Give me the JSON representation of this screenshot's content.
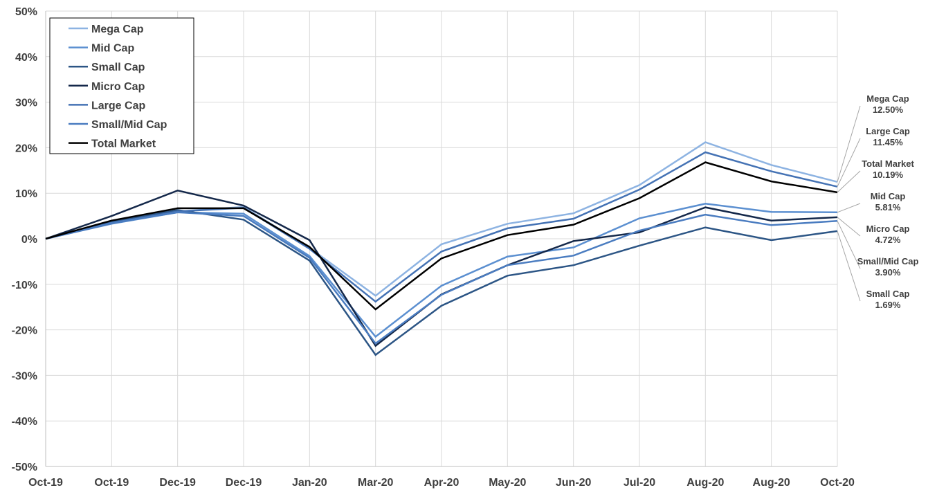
{
  "chart_data": {
    "type": "line",
    "title": "",
    "xlabel": "",
    "ylabel": "",
    "ylim": [
      -50,
      50
    ],
    "y_ticks": [
      50,
      40,
      30,
      20,
      10,
      0,
      -10,
      -20,
      -30,
      -40,
      -50
    ],
    "y_tick_labels": [
      "50%",
      "40%",
      "30%",
      "20%",
      "10%",
      "0%",
      "-10%",
      "-20%",
      "-30%",
      "-40%",
      "-50%"
    ],
    "categories": [
      "Oct-19",
      "Oct-19",
      "Dec-19",
      "Dec-19",
      "Jan-20",
      "Mar-20",
      "Apr-20",
      "May-20",
      "Jun-20",
      "Jul-20",
      "Aug-20",
      "Aug-20",
      "Oct-20"
    ],
    "grid": true,
    "legend_position": "top-left",
    "series": [
      {
        "name": "Mega Cap",
        "color": "#8db3e2",
        "width": 2.5,
        "values": [
          0,
          3.5,
          6.0,
          7.0,
          -2.0,
          -12.5,
          -1.2,
          3.3,
          5.6,
          11.8,
          21.2,
          16.2,
          12.5
        ],
        "end_label": [
          "Mega Cap",
          "12.50%"
        ]
      },
      {
        "name": "Mid Cap",
        "color": "#5b8fd0",
        "width": 2.5,
        "values": [
          0,
          3.3,
          5.8,
          5.5,
          -3.8,
          -21.5,
          -10.3,
          -3.9,
          -1.9,
          4.5,
          7.7,
          5.9,
          5.81
        ],
        "end_label": [
          "Mid Cap",
          "5.81%"
        ]
      },
      {
        "name": "Small Cap",
        "color": "#2c5585",
        "width": 2.5,
        "values": [
          0,
          3.8,
          6.3,
          4.2,
          -4.8,
          -25.5,
          -14.7,
          -8.1,
          -5.8,
          -1.5,
          2.5,
          -0.3,
          1.69
        ],
        "end_label": [
          "Small Cap",
          "1.69%"
        ]
      },
      {
        "name": "Micro Cap",
        "color": "#14284a",
        "width": 2.5,
        "values": [
          0,
          5.0,
          10.6,
          7.3,
          -0.3,
          -23.5,
          -12.2,
          -5.8,
          -0.5,
          1.4,
          6.9,
          4.0,
          4.72
        ],
        "end_label": [
          "Micro Cap",
          "4.72%"
        ]
      },
      {
        "name": "Large Cap",
        "color": "#4472b4",
        "width": 2.5,
        "values": [
          0,
          3.4,
          6.0,
          6.8,
          -2.2,
          -13.8,
          -2.8,
          2.3,
          4.4,
          10.8,
          19.0,
          14.8,
          11.45
        ],
        "end_label": [
          "Large Cap",
          "11.45%"
        ]
      },
      {
        "name": "Small/Mid Cap",
        "color": "#4a7cc0",
        "width": 2.5,
        "values": [
          0,
          3.5,
          5.8,
          5.0,
          -4.2,
          -23.0,
          -12.3,
          -5.8,
          -3.7,
          1.8,
          5.3,
          3.0,
          3.9
        ],
        "end_label": [
          "Small/Mid Cap",
          "3.90%"
        ]
      },
      {
        "name": "Total Market",
        "color": "#000000",
        "width": 2.5,
        "values": [
          0,
          4.0,
          6.7,
          6.7,
          -1.8,
          -15.5,
          -4.3,
          0.8,
          3.1,
          8.9,
          16.8,
          12.6,
          10.19
        ],
        "end_label": [
          "Total Market",
          "10.19%"
        ]
      }
    ],
    "end_label_order": [
      "Mega Cap",
      "Large Cap",
      "Total Market",
      "Mid Cap",
      "Micro Cap",
      "Small/Mid Cap",
      "Small Cap"
    ]
  }
}
